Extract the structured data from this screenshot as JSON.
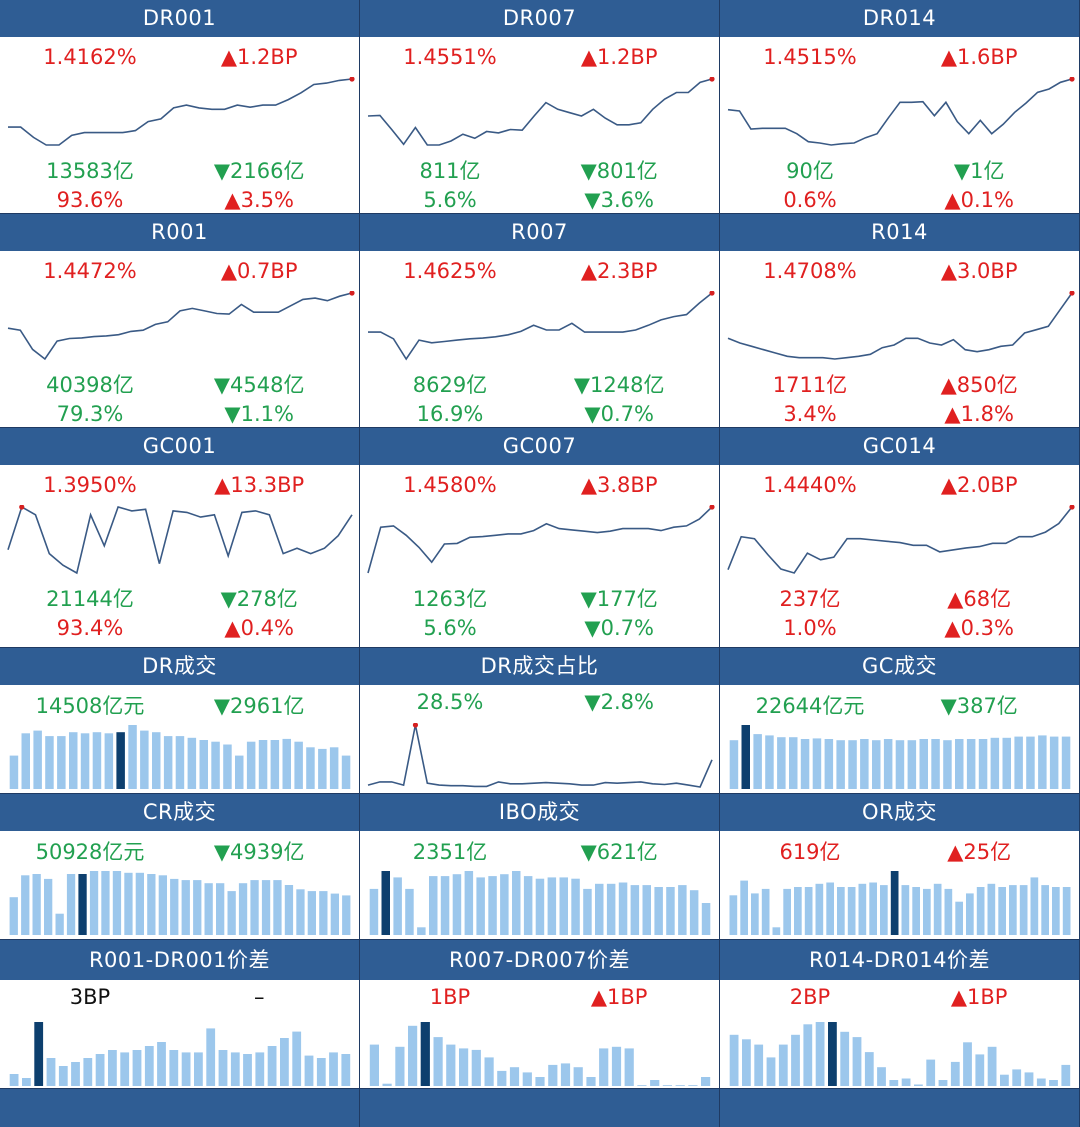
{
  "colors": {
    "header_bg": "#2f5d94",
    "up": "#e02020",
    "down": "#22a050",
    "line": "#3a5a85",
    "bar_light": "#9cc7ec",
    "bar_dark": "#0d3f6e",
    "last_dot": "#d62020"
  },
  "panels": [
    {
      "title": "DR001",
      "kind": "line",
      "v1": "1.4162%",
      "v1c": "up",
      "v2": "▲1.2BP",
      "v2c": "up",
      "v3": "13583亿",
      "v3c": "dn",
      "v4": "▼2166亿",
      "v4c": "dn",
      "v5": "93.6%",
      "v5c": "up",
      "v6": "▲3.5%",
      "v6c": "up",
      "series": [
        3,
        3,
        1.5,
        0.4,
        0.4,
        1.8,
        2.2,
        2.2,
        2.2,
        2.2,
        2.5,
        3.8,
        4.2,
        5.8,
        6.2,
        5.8,
        5.6,
        5.6,
        6.2,
        5.9,
        6.2,
        6.2,
        7.0,
        8.0,
        9.2,
        9.4,
        9.8,
        10
      ]
    },
    {
      "title": "DR007",
      "kind": "line",
      "v1": "1.4551%",
      "v1c": "up",
      "v2": "▲1.2BP",
      "v2c": "up",
      "v3": "811亿",
      "v3c": "dn",
      "v4": "▼801亿",
      "v4c": "dn",
      "v5": "5.6%",
      "v5c": "dn",
      "v6": "▼3.6%",
      "v6c": "dn",
      "series": [
        4.5,
        4.6,
        2.5,
        0.3,
        2.8,
        0.2,
        0.2,
        0.8,
        1.8,
        1.2,
        2.2,
        2,
        2.5,
        2.4,
        4.5,
        6.5,
        5.5,
        5,
        4.5,
        5.5,
        4.2,
        3.2,
        3.2,
        3.5,
        5.5,
        7,
        8,
        8,
        9.5,
        10
      ]
    },
    {
      "title": "DR014",
      "kind": "line",
      "v1": "1.4515%",
      "v1c": "up",
      "v2": "▲1.6BP",
      "v2c": "up",
      "v3": "90亿",
      "v3c": "dn",
      "v4": "▼1亿",
      "v4c": "dn",
      "v5": "0.6%",
      "v5c": "up",
      "v6": "▲0.1%",
      "v6c": "up",
      "series": [
        5.4,
        5.2,
        2.5,
        2.6,
        2.6,
        2.6,
        1.8,
        0.6,
        0.4,
        0.1,
        0.3,
        0.4,
        1.2,
        1.8,
        4.2,
        6.5,
        6.5,
        6.6,
        4.5,
        6.5,
        3.6,
        1.8,
        3.8,
        1.8,
        3.2,
        5,
        6.4,
        8,
        8.5,
        9.5,
        10
      ]
    },
    {
      "title": "R001",
      "kind": "line",
      "v1": "1.4472%",
      "v1c": "up",
      "v2": "▲0.7BP",
      "v2c": "up",
      "v3": "40398亿",
      "v3c": "dn",
      "v4": "▼4548亿",
      "v4c": "dn",
      "v5": "79.3%",
      "v5c": "dn",
      "v6": "▼1.1%",
      "v6c": "dn",
      "series": [
        5.5,
        5.2,
        2.2,
        0.7,
        3.5,
        3.9,
        4,
        4.2,
        4.3,
        4.5,
        5,
        5.2,
        6.1,
        6.5,
        8.2,
        8.6,
        8.2,
        7.8,
        7.7,
        9.2,
        8,
        8,
        8,
        9,
        10,
        10.2,
        9.8,
        10.5,
        11
      ]
    },
    {
      "title": "R007",
      "kind": "line",
      "v1": "1.4625%",
      "v1c": "up",
      "v2": "▲2.3BP",
      "v2c": "up",
      "v3": "8629亿",
      "v3c": "dn",
      "v4": "▼1248亿",
      "v4c": "dn",
      "v5": "16.9%",
      "v5c": "dn",
      "v6": "▼0.7%",
      "v6c": "dn",
      "series": [
        4.2,
        4.2,
        3.2,
        0.2,
        3,
        2.6,
        2.8,
        3,
        3.2,
        3.3,
        3.5,
        3.8,
        4.3,
        5.2,
        4.5,
        4.5,
        5.5,
        4.2,
        4.2,
        4.2,
        4.2,
        4.5,
        5.2,
        6,
        6.5,
        6.8,
        8.5,
        10
      ]
    },
    {
      "title": "R014",
      "kind": "line",
      "v1": "1.4708%",
      "v1c": "up",
      "v2": "▲3.0BP",
      "v2c": "up",
      "v3": "1711亿",
      "v3c": "up",
      "v4": "▲850亿",
      "v4c": "up",
      "v5": "3.4%",
      "v5c": "up",
      "v6": "▲1.8%",
      "v6c": "up",
      "series": [
        3.2,
        2.5,
        2,
        1.5,
        1,
        0.5,
        0.3,
        0.3,
        0.3,
        0.1,
        0.3,
        0.5,
        0.8,
        1.8,
        2.2,
        3.2,
        3.2,
        2.5,
        2.2,
        3,
        1.5,
        1.2,
        1.5,
        2,
        2.2,
        4,
        4.5,
        5,
        7.5,
        10
      ]
    },
    {
      "title": "GC001",
      "kind": "line",
      "v1": "1.3950%",
      "v1c": "up",
      "v2": "▲13.3BP",
      "v2c": "up",
      "v3": "21144亿",
      "v3c": "dn",
      "v4": "▼278亿",
      "v4c": "dn",
      "v5": "93.4%",
      "v5c": "up",
      "v6": "▲0.4%",
      "v6c": "up",
      "first_dot": true,
      "series": [
        3,
        8.5,
        7.5,
        2.5,
        1,
        0,
        7.5,
        3.5,
        8.5,
        8,
        8.2,
        1.2,
        8,
        7.8,
        7.2,
        7.5,
        2.2,
        7.8,
        8,
        7.5,
        2.5,
        3.2,
        2.5,
        3.2,
        4.8,
        7.5
      ]
    },
    {
      "title": "GC007",
      "kind": "line",
      "v1": "1.4580%",
      "v1c": "up",
      "v2": "▲3.8BP",
      "v2c": "up",
      "v3": "1263亿",
      "v3c": "dn",
      "v4": "▼177亿",
      "v4c": "dn",
      "v5": "5.6%",
      "v5c": "dn",
      "v6": "▼0.7%",
      "v6c": "dn",
      "series": [
        0.2,
        7,
        7.2,
        5.8,
        4,
        1.8,
        4.5,
        4.6,
        5.5,
        5.6,
        5.8,
        6,
        6,
        6.5,
        7.5,
        6.8,
        6.6,
        6.4,
        6.2,
        6.4,
        6.8,
        6.8,
        6.8,
        6.5,
        7,
        7.2,
        8.2,
        10
      ]
    },
    {
      "title": "GC014",
      "kind": "line",
      "v1": "1.4440%",
      "v1c": "up",
      "v2": "▲2.0BP",
      "v2c": "up",
      "v3": "237亿",
      "v3c": "up",
      "v4": "▲68亿",
      "v4c": "up",
      "v5": "1.0%",
      "v5c": "up",
      "v6": "▲0.3%",
      "v6c": "up",
      "series": [
        0.5,
        5.5,
        5.2,
        2.8,
        0.6,
        0,
        3,
        2,
        2.4,
        5.2,
        5.2,
        5,
        4.8,
        4.6,
        4.2,
        4.2,
        3.2,
        3.5,
        3.8,
        4,
        4.5,
        4.5,
        5.5,
        5.5,
        6.2,
        7.5,
        10
      ]
    },
    {
      "title": "DR成交",
      "kind": "bar",
      "v1": "14508亿元",
      "v1c": "dn",
      "v2": "▼2961亿",
      "v2c": "dn",
      "series": [
        6,
        10,
        10.5,
        9.5,
        9.5,
        10.2,
        10,
        10.2,
        10,
        10.2,
        11.5,
        10.5,
        10.2,
        9.5,
        9.5,
        9.2,
        8.8,
        8.5,
        8,
        6,
        8.5,
        8.8,
        8.8,
        9,
        8.5,
        7.5,
        7.2,
        7.5,
        6
      ],
      "highlight": 9
    },
    {
      "title": "DR成交占比",
      "kind": "line_small",
      "v1": "28.5%",
      "v1c": "dn",
      "v2": "▼2.8%",
      "v2c": "dn",
      "series": [
        0.5,
        1,
        1,
        0.5,
        10,
        0.8,
        0.5,
        0.4,
        0.4,
        0.3,
        0.3,
        1,
        0.7,
        0.7,
        0.8,
        0.9,
        0.8,
        0.7,
        0.5,
        0.5,
        0.9,
        0.8,
        0.9,
        1,
        0.7,
        0.6,
        0.8,
        0.5,
        0.2,
        4.5
      ],
      "peak_dot": 4
    },
    {
      "title": "GC成交",
      "kind": "bar",
      "v1": "22644亿元",
      "v1c": "dn",
      "v2": "▼387亿",
      "v2c": "dn",
      "series": [
        8,
        10.5,
        9,
        8.8,
        8.5,
        8.5,
        8.2,
        8.3,
        8.2,
        8,
        8,
        8.2,
        8,
        8.2,
        8,
        8,
        8.2,
        8.2,
        8,
        8.2,
        8.2,
        8.2,
        8.4,
        8.4,
        8.6,
        8.6,
        8.8,
        8.6,
        8.6
      ],
      "highlight": 1
    },
    {
      "title": "CR成交",
      "kind": "bar",
      "v1": "50928亿元",
      "v1c": "dn",
      "v2": "▼4939亿",
      "v2c": "dn",
      "series": [
        6.2,
        9.8,
        10,
        9.2,
        3.5,
        10,
        10,
        10.5,
        10.5,
        10.5,
        10.2,
        10.2,
        10,
        9.8,
        9.2,
        9,
        9,
        8.5,
        8.5,
        7.2,
        8.5,
        9,
        9,
        9,
        8.2,
        7.5,
        7.2,
        7.2,
        6.8,
        6.5
      ],
      "highlight": 6
    },
    {
      "title": "IBO成交",
      "kind": "bar",
      "v1": "2351亿",
      "v1c": "dn",
      "v2": "▼621亿",
      "v2c": "dn",
      "series": [
        7.2,
        10,
        9,
        7.2,
        1.2,
        9.2,
        9.2,
        9.5,
        10,
        9,
        9.2,
        9.5,
        10,
        9.2,
        8.8,
        9,
        9,
        8.8,
        7.2,
        8,
        8,
        8.2,
        7.8,
        7.8,
        7.5,
        7.5,
        7.8,
        7,
        5
      ],
      "highlight": 1
    },
    {
      "title": "OR成交",
      "kind": "bar",
      "v1": "619亿",
      "v1c": "up",
      "v2": "▲25亿",
      "v2c": "up",
      "series": [
        6.2,
        8.5,
        6.5,
        7.2,
        1.2,
        7.2,
        7.5,
        7.5,
        8,
        8.2,
        7.5,
        7.5,
        8,
        8.2,
        7.8,
        10,
        7.8,
        7.5,
        7.2,
        8,
        7.2,
        5.2,
        6.5,
        7.5,
        8,
        7.5,
        7.8,
        7.8,
        9,
        7.8,
        7.5,
        7.5
      ],
      "highlight": 15
    },
    {
      "title": "R001-DR001价差",
      "kind": "bar_low",
      "v1": "3BP",
      "v1c": "neu",
      "v2": "–",
      "v2c": "neu",
      "series": [
        1.5,
        1,
        8,
        3.5,
        2.5,
        3,
        3.5,
        4,
        4.5,
        4.2,
        4.5,
        5,
        5.5,
        4.5,
        4.2,
        4.2,
        7.2,
        4.5,
        4.2,
        4,
        4.2,
        5,
        6,
        6.8,
        3.8,
        3.5,
        4.2,
        4
      ],
      "highlight": 2
    },
    {
      "title": "R007-DR007价差",
      "kind": "bar_low",
      "v1": "1BP",
      "v1c": "up",
      "v2": "▲1BP",
      "v2c": "up",
      "series": [
        5.5,
        0.3,
        5.2,
        8,
        8.5,
        6.5,
        5.5,
        5,
        4.8,
        3.8,
        2,
        2.5,
        1.8,
        1.2,
        2.8,
        3,
        2.5,
        1.2,
        5,
        5.2,
        5,
        0.1,
        0.8,
        0.1,
        0.1,
        0.1,
        1.2
      ],
      "highlight": 4
    },
    {
      "title": "R014-DR014价差",
      "kind": "bar_low",
      "v1": "2BP",
      "v1c": "up",
      "v2": "▲1BP",
      "v2c": "up",
      "series": [
        6.8,
        6.2,
        5.5,
        3.8,
        5.5,
        6.8,
        8.2,
        8.5,
        8.5,
        7.2,
        6.5,
        4.5,
        2.5,
        0.8,
        1,
        0.2,
        3.5,
        0.8,
        3.2,
        5.8,
        4.2,
        5.2,
        1.5,
        2.2,
        1.8,
        1,
        0.8,
        2.8
      ],
      "highlight": 8
    }
  ]
}
